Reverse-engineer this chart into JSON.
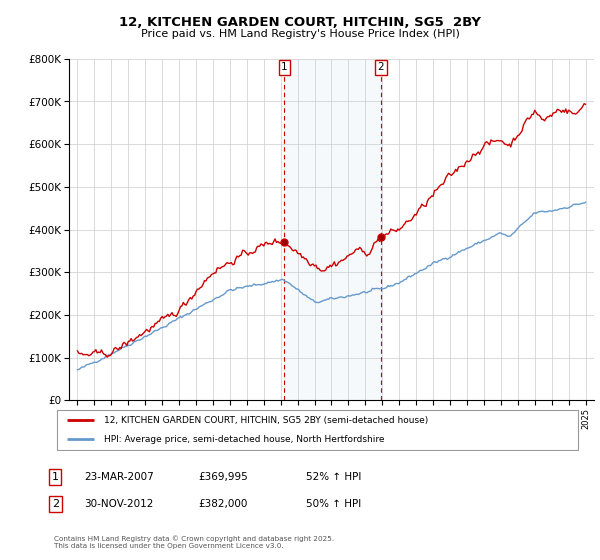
{
  "title": "12, KITCHEN GARDEN COURT, HITCHIN, SG5  2BY",
  "subtitle": "Price paid vs. HM Land Registry's House Price Index (HPI)",
  "legend_property": "12, KITCHEN GARDEN COURT, HITCHIN, SG5 2BY (semi-detached house)",
  "legend_hpi": "HPI: Average price, semi-detached house, North Hertfordshire",
  "transaction1_date": "23-MAR-2007",
  "transaction1_price": 369995,
  "transaction1_pct": "52% ↑ HPI",
  "transaction1_year": 2007.22,
  "transaction2_date": "30-NOV-2012",
  "transaction2_price": 382000,
  "transaction2_pct": "50% ↑ HPI",
  "transaction2_year": 2012.92,
  "footnote": "Contains HM Land Registry data © Crown copyright and database right 2025.\nThis data is licensed under the Open Government Licence v3.0.",
  "property_color": "#cc0000",
  "hpi_color": "#6699cc",
  "shading_color": "#ddeeff",
  "vline_color": "#cc0000",
  "ylim_max": 800000,
  "xlim_min": 1994.5,
  "xlim_max": 2025.5
}
